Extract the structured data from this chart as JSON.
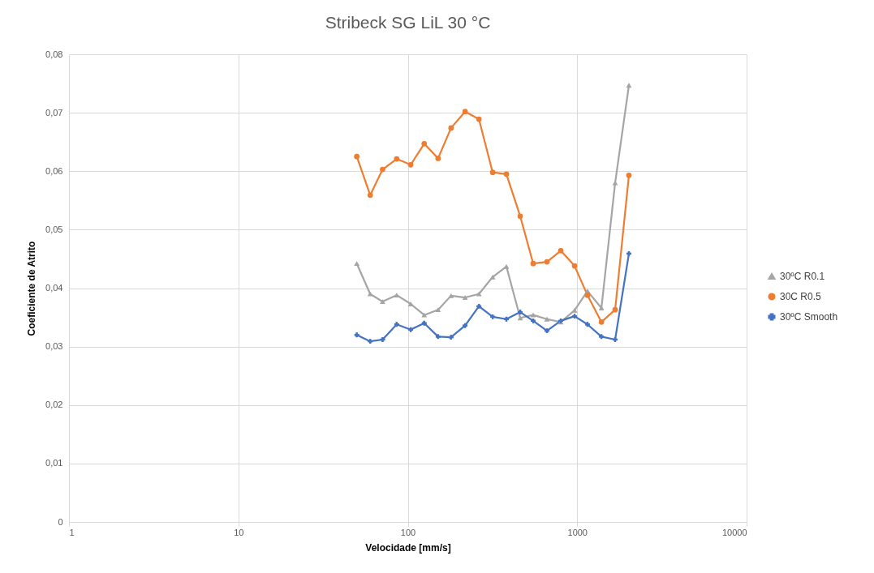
{
  "chart_data": {
    "type": "line",
    "title": "Stribeck SG LiL 30 °C",
    "xlabel": "Velocidade [mm/s]",
    "ylabel": "Coeficiente de Atrito",
    "x": [
      50,
      60,
      71,
      86,
      104,
      125,
      151,
      180,
      218,
      263,
      317,
      382,
      461,
      550,
      663,
      800,
      965,
      1150,
      1390,
      1675,
      2020
    ],
    "series": [
      {
        "name": "30ºC R0.1",
        "color": "#a5a5a5",
        "marker": "triangle",
        "values": [
          0.0442,
          0.039,
          0.0377,
          0.0388,
          0.0373,
          0.0354,
          0.0363,
          0.0387,
          0.0384,
          0.039,
          0.0419,
          0.0437,
          0.0349,
          0.0354,
          0.0347,
          0.0342,
          0.0362,
          0.0395,
          0.0366,
          0.058,
          0.0747
        ]
      },
      {
        "name": "30C R0.5",
        "color": "#ed7d31",
        "marker": "circle",
        "values": [
          0.0625,
          0.0559,
          0.0603,
          0.0621,
          0.0611,
          0.0647,
          0.0622,
          0.0674,
          0.0702,
          0.0689,
          0.0598,
          0.0595,
          0.0523,
          0.0442,
          0.0445,
          0.0464,
          0.0438,
          0.0388,
          0.0342,
          0.0363,
          0.0593
        ]
      },
      {
        "name": "30ºC Smooth",
        "color": "#4472c4",
        "marker": "cross",
        "values": [
          0.032,
          0.0309,
          0.0312,
          0.0338,
          0.0329,
          0.034,
          0.0317,
          0.0316,
          0.0336,
          0.0369,
          0.0351,
          0.0347,
          0.0359,
          0.0344,
          0.0327,
          0.0344,
          0.0352,
          0.0338,
          0.0317,
          0.0312,
          0.0459
        ]
      }
    ],
    "log": "x",
    "xlim": [
      1,
      10000
    ],
    "xticks": [
      1,
      10,
      100,
      1000,
      10000
    ],
    "ylim": [
      0,
      0.08
    ],
    "yticks": [
      0,
      {
        "value": 0.01,
        "label": "0,01"
      },
      {
        "value": 0.02,
        "label": "0,02"
      },
      {
        "value": 0.03,
        "label": "0,03"
      },
      {
        "value": 0.04,
        "label": "0,04"
      },
      {
        "value": 0.05,
        "label": "0,05"
      },
      {
        "value": 0.06,
        "label": "0,06"
      },
      {
        "value": 0.07,
        "label": "0,07"
      },
      {
        "value": 0.08,
        "label": "0,08"
      }
    ],
    "grid": true,
    "legend": "right",
    "line_style": "solid"
  }
}
